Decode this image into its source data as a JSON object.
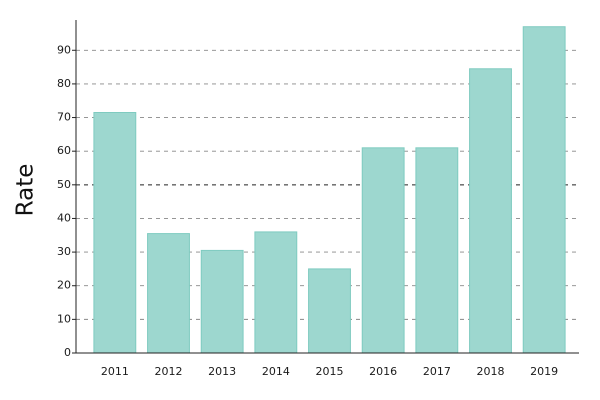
{
  "chart_data": {
    "type": "bar",
    "title": "",
    "xlabel": "",
    "ylabel": "Rate",
    "categories": [
      "2011",
      "2012",
      "2013",
      "2014",
      "2015",
      "2016",
      "2017",
      "2018",
      "2019"
    ],
    "values": [
      71.5,
      35.5,
      30.5,
      36,
      25,
      61,
      61,
      84.5,
      97
    ],
    "ylim": [
      0,
      99
    ],
    "yticks": [
      0,
      10,
      20,
      30,
      40,
      50,
      60,
      70,
      80,
      90
    ],
    "grid": "horizontal-dashed",
    "reference_line": 50,
    "legend": "none",
    "colors": {
      "bar_fill": "#9dd7cf",
      "bar_edge": "#7fcbc0",
      "axis": "#222222",
      "grid": "#888888",
      "reference_line": "#222222"
    }
  }
}
